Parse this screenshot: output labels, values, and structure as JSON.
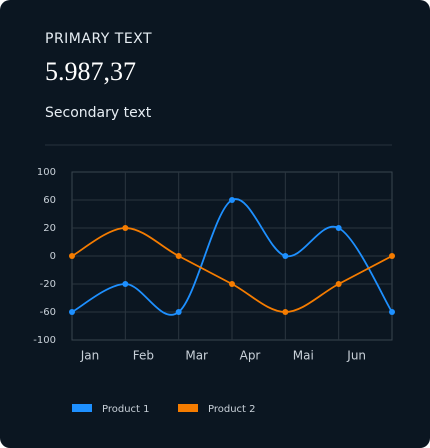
{
  "header": {
    "label": "PRIMARY TEXT",
    "value": "5.987,37",
    "secondary": "Secondary text"
  },
  "chart_data": {
    "type": "line",
    "categories": [
      "Jan",
      "Feb",
      "Mar",
      "Apr",
      "Mai",
      "Jun",
      null
    ],
    "series": [
      {
        "name": "Product 1",
        "color": "#1e90ff",
        "values": [
          -60,
          -20,
          -60,
          60,
          0,
          20,
          -60
        ]
      },
      {
        "name": "Product 2",
        "color": "#f57c00",
        "values": [
          0,
          20,
          0,
          -20,
          -60,
          -20,
          0
        ]
      }
    ],
    "ylim": [
      -100,
      100
    ],
    "yticks": [
      -100,
      -60,
      -20,
      0,
      20,
      60,
      100
    ],
    "grid": true
  }
}
